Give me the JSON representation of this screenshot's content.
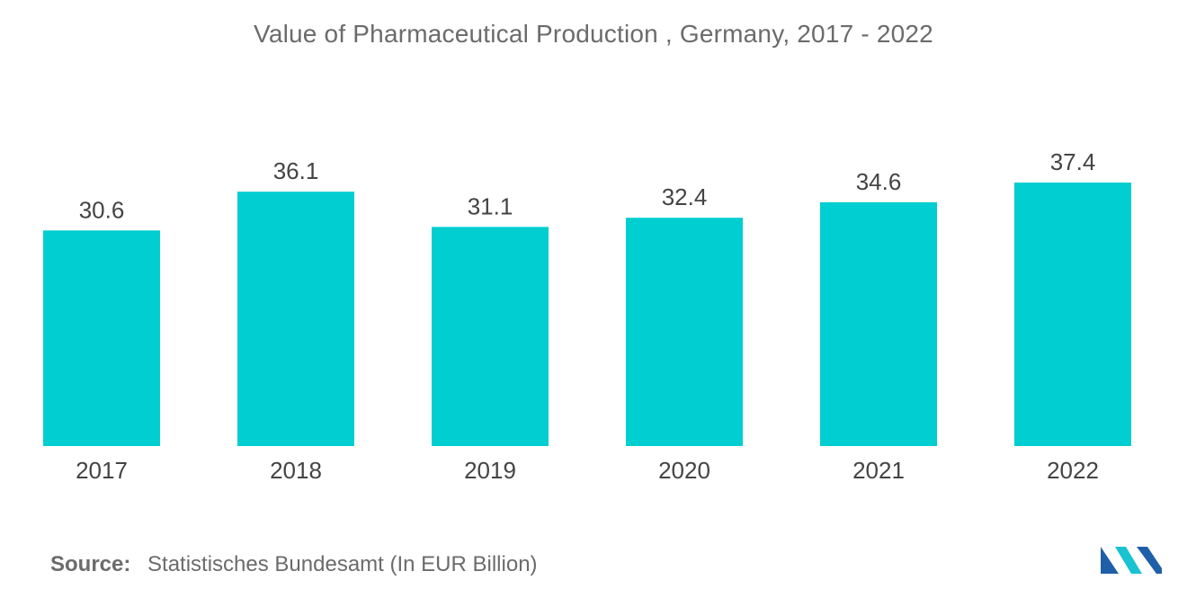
{
  "title": "Value of Pharmaceutical Production , Germany, 2017 - 2022",
  "source": {
    "label": "Source:",
    "text": "Statistisches Bundesamt (In EUR Billion)"
  },
  "logo": {
    "icon": "mordor-intelligence-logo-icon",
    "colors": [
      "#1f5fa8",
      "#19c3d0"
    ]
  },
  "colors": {
    "bar": "#00ced1",
    "text": "#6b6b6b",
    "label": "#444444"
  },
  "chart_data": {
    "type": "bar",
    "title": "Value of Pharmaceutical Production , Germany, 2017 - 2022",
    "xlabel": "",
    "ylabel": "",
    "categories": [
      "2017",
      "2018",
      "2019",
      "2020",
      "2021",
      "2022"
    ],
    "values": [
      30.6,
      36.1,
      31.1,
      32.4,
      34.6,
      37.4
    ],
    "data_labels": [
      "30.6",
      "36.1",
      "31.1",
      "32.4",
      "34.6",
      "37.4"
    ],
    "ylim": [
      0,
      37.4
    ],
    "grid": false,
    "legend": "none"
  }
}
